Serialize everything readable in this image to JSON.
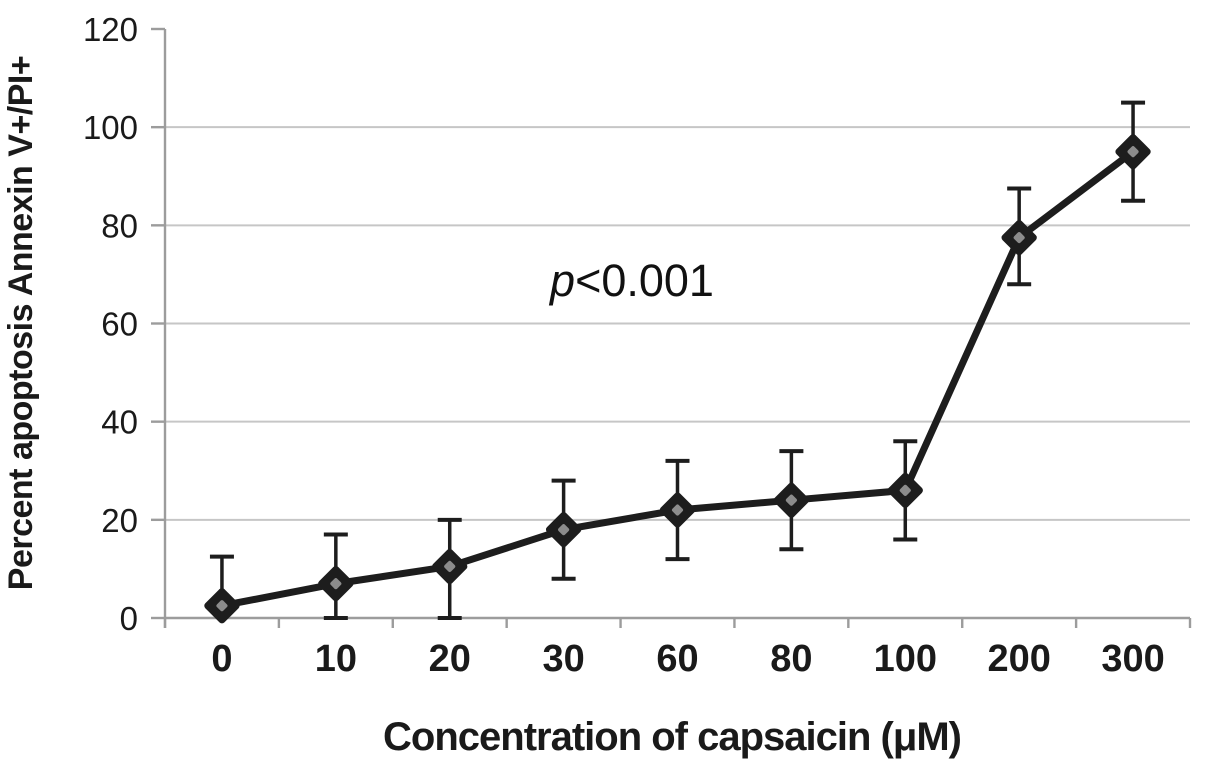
{
  "chart_data": {
    "type": "line",
    "title": "",
    "xlabel": "Concentration of capsaicin (μM)",
    "ylabel": "Percent apoptosis Annexin V+/PI+",
    "annotation": {
      "text": "p<0.001",
      "italic_part": "p",
      "rest": "<0.001"
    },
    "categories": [
      "0",
      "10",
      "20",
      "30",
      "60",
      "80",
      "100",
      "200",
      "300"
    ],
    "series": [
      {
        "name": "Percent apoptosis Annexin V+/PI+",
        "values": [
          2.5,
          7,
          10.5,
          18,
          22,
          24,
          26,
          77.5,
          95
        ],
        "error_high": [
          12.5,
          17,
          20,
          28,
          32,
          34,
          36,
          87.5,
          105
        ],
        "error_low": [
          2.5,
          0,
          0,
          8,
          12,
          14,
          16,
          68,
          85
        ]
      }
    ],
    "ylim": [
      0,
      120
    ],
    "yticks": [
      0,
      20,
      40,
      60,
      80,
      100,
      120
    ],
    "grid": "horizontal-only, no line at 120",
    "legend": "none",
    "marker": "diamond with gray center dot, error bars with caps",
    "colors": {
      "line": "#1d1d1d",
      "marker": "#1d1d1d",
      "marker_center": "#8c8c8c",
      "grid": "#c6c6c6",
      "axis": "#9c9c9c",
      "text": "#1a1a1a",
      "background": "#ffffff"
    }
  }
}
